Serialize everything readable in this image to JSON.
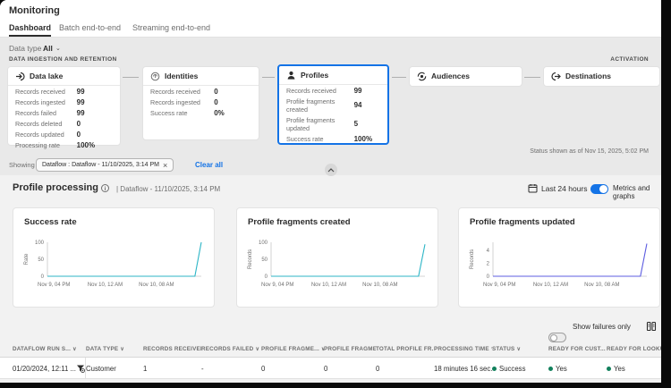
{
  "app": {
    "title": "Monitoring",
    "tabs": [
      {
        "label": "Dashboard"
      },
      {
        "label": "Batch end-to-end"
      },
      {
        "label": "Streaming end-to-end"
      }
    ],
    "data_type_label": "Data type",
    "data_type_value": "All"
  },
  "ingestion": {
    "section_label": "DATA INGESTION AND RETENTION",
    "activation_label": "ACTIVATION",
    "status_text": "Status shown as of Nov 15, 2025, 5:02 PM",
    "cards": [
      {
        "title": "Data lake",
        "icon": "data-lake-icon",
        "metrics": [
          {
            "label": "Records received",
            "value": "99"
          },
          {
            "label": "Records ingested",
            "value": "99"
          },
          {
            "label": "Records failed",
            "value": "99"
          },
          {
            "label": "Records deleted",
            "value": "0"
          },
          {
            "label": "Records updated",
            "value": "0"
          },
          {
            "label": "Processing rate",
            "value": "100%"
          }
        ]
      },
      {
        "title": "Identities",
        "icon": "identities-icon",
        "metrics": [
          {
            "label": "Records received",
            "value": "0"
          },
          {
            "label": "Records ingested",
            "value": "0"
          },
          {
            "label": "Success rate",
            "value": "0%"
          }
        ]
      },
      {
        "title": "Profiles",
        "icon": "profiles-icon",
        "selected": true,
        "metrics": [
          {
            "label": "Records received",
            "value": "99"
          },
          {
            "label": "Profile fragments created",
            "value": "94"
          },
          {
            "label": "Profile fragments updated",
            "value": "5"
          },
          {
            "label": "Success rate",
            "value": "100%"
          }
        ]
      },
      {
        "title": "Audiences",
        "icon": "audiences-icon",
        "metrics": []
      },
      {
        "title": "Destinations",
        "icon": "destinations-icon",
        "metrics": []
      }
    ]
  },
  "filter_bar": {
    "showing_label": "Showing",
    "tag_text": "Dataflow : Dataflow - 11/10/2025, 3:14 PM",
    "clear_all_label": "Clear all"
  },
  "profile_processing": {
    "title": "Profile processing",
    "subtitle": "| Dataflow - 11/10/2025, 3:14 PM",
    "time_range_label": "Last 24 hours",
    "toggle_label": "Metrics and graphs",
    "toggle_state": "on",
    "show_failures_label": "Show failures only",
    "show_failures_state": "off"
  },
  "chart_data": [
    {
      "type": "line",
      "title": "Success rate",
      "ylabel": "Rate",
      "yticks": [
        0,
        50,
        100
      ],
      "ylim": [
        0,
        100
      ],
      "xlim": [
        0,
        24
      ],
      "xticks": [
        {
          "pos": 1,
          "label": "Nov 9, 04 PM"
        },
        {
          "pos": 9,
          "label": "Nov 10, 12 AM"
        },
        {
          "pos": 17,
          "label": "Nov 10, 08 AM"
        }
      ],
      "series": [
        {
          "name": "Success rate",
          "color": "#2cb5c6",
          "x": [
            0,
            23,
            24
          ],
          "y": [
            0,
            0,
            100
          ]
        }
      ]
    },
    {
      "type": "line",
      "title": "Profile fragments created",
      "ylabel": "Records",
      "yticks": [
        0,
        50,
        100
      ],
      "ylim": [
        0,
        100
      ],
      "xlim": [
        0,
        24
      ],
      "xticks": [
        {
          "pos": 1,
          "label": "Nov 9, 04 PM"
        },
        {
          "pos": 9,
          "label": "Nov 10, 12 AM"
        },
        {
          "pos": 17,
          "label": "Nov 10, 08 AM"
        }
      ],
      "series": [
        {
          "name": "Profile fragments created",
          "color": "#2cb5c6",
          "x": [
            0,
            23,
            24
          ],
          "y": [
            0,
            0,
            94
          ]
        }
      ]
    },
    {
      "type": "line",
      "title": "Profile fragments updated",
      "ylabel": "Records",
      "yticks": [
        0,
        2,
        4
      ],
      "ylim": [
        0,
        5.2
      ],
      "xlim": [
        0,
        24
      ],
      "xticks": [
        {
          "pos": 1,
          "label": "Nov 9, 04 PM"
        },
        {
          "pos": 9,
          "label": "Nov 10, 12 AM"
        },
        {
          "pos": 17,
          "label": "Nov 10, 08 AM"
        }
      ],
      "series": [
        {
          "name": "Profile fragments updated",
          "color": "#5c5ce0",
          "x": [
            0,
            23,
            24
          ],
          "y": [
            0,
            0,
            5
          ]
        }
      ]
    }
  ],
  "table": {
    "columns": [
      "DATAFLOW RUN S...",
      "DATA TYPE",
      "RECORDS RECEIVED",
      "RECORDS FAILED",
      "PROFILE FRAGME...",
      "PROFILE FRAGME...",
      "TOTAL PROFILE FR...",
      "PROCESSING TIME",
      "STATUS",
      "READY FOR CUST...",
      "READY FOR LOOKUP"
    ],
    "rows": [
      {
        "dataflow_run": "01/20/2024, 12:11 ...",
        "data_type": "Customer",
        "records_received": "1",
        "records_failed": "-",
        "fragments_created": "0",
        "fragments_updated": "0",
        "total_fragments": "0",
        "processing_time": "18 minutes 16 sec...",
        "status": "Success",
        "ready_for_customer": "Yes",
        "ready_for_lookup": "Yes"
      }
    ]
  },
  "colors": {
    "accent_blue": "#1473e6",
    "teal_line": "#2cb5c6",
    "purple_line": "#5c5ce0",
    "success_green": "#12805c"
  }
}
